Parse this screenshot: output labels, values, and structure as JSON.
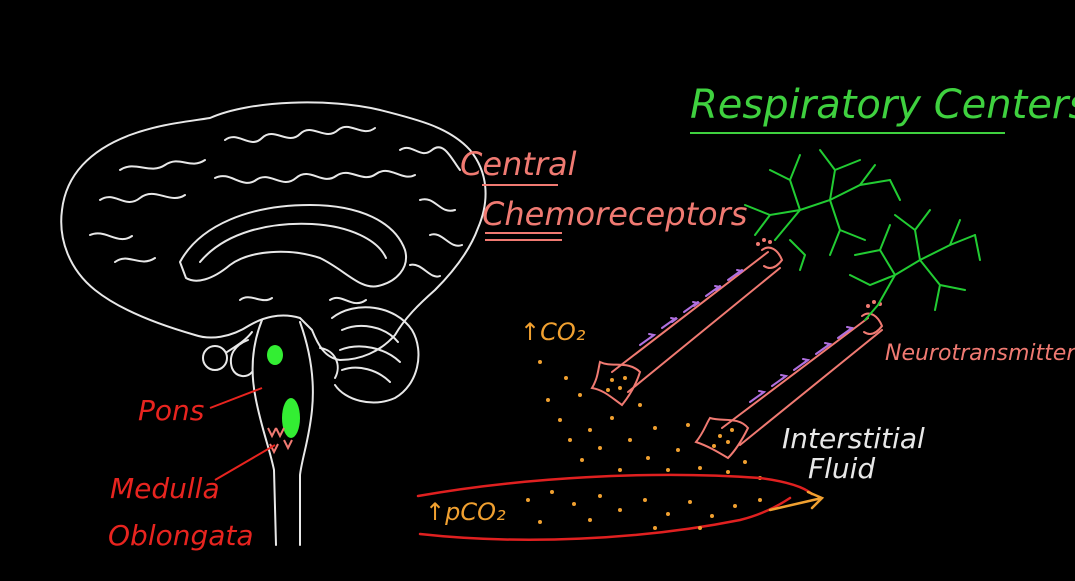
{
  "labels": {
    "title": "Respiratory Centers",
    "central_line1": "Central",
    "central_line2": "Chemoreceptors",
    "co2": "↑CO₂",
    "pco2": "↑pCO₂",
    "neurotransmitters": "Neurotransmitters",
    "interstitial_line1": "Interstitial",
    "interstitial_line2": "Fluid",
    "pons": "Pons",
    "medulla_line1": "Medulla",
    "medulla_line2": "Oblongata"
  },
  "colors": {
    "background": "#000000",
    "outline": "#e8e8e8",
    "title_green": "#3fd13f",
    "neuron_green": "#22cc33",
    "red_label": "#e8241f",
    "salmon": "#f07a72",
    "orange": "#f0a030",
    "purple": "#b070e0",
    "blood_red": "#e02020",
    "bright_green": "#33ee33"
  }
}
